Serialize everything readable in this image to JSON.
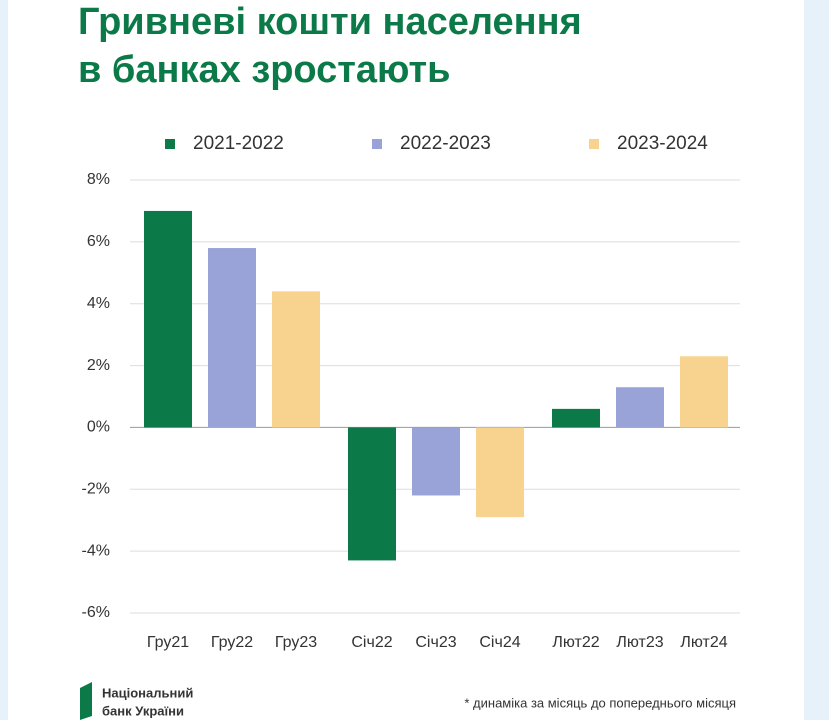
{
  "chart_data": {
    "type": "bar",
    "title": [
      "Гривневі кошти населення",
      "в банках зростають"
    ],
    "categories": [
      "Гру21",
      "Гру22",
      "Гру23",
      "Січ22",
      "Січ23",
      "Січ24",
      "Лют22",
      "Лют23",
      "Лют24"
    ],
    "series": [
      {
        "name": "2021-2022",
        "color": "#0b7a48",
        "values": [
          7.0,
          null,
          null,
          -4.3,
          null,
          null,
          0.6,
          null,
          null
        ]
      },
      {
        "name": "2022-2023",
        "color": "#99a3d7",
        "values": [
          null,
          5.8,
          null,
          null,
          -2.2,
          null,
          null,
          1.3,
          null
        ]
      },
      {
        "name": "2023-2024",
        "color": "#f7d38f",
        "values": [
          null,
          null,
          4.4,
          null,
          null,
          -2.9,
          null,
          null,
          2.3
        ]
      }
    ],
    "ylim": [
      -6,
      8
    ],
    "yticks": [
      {
        "value": -6,
        "label": "-6%"
      },
      {
        "value": -4,
        "label": "-4%"
      },
      {
        "value": -2,
        "label": "-2%"
      },
      {
        "value": 0,
        "label": "0%"
      },
      {
        "value": 2,
        "label": "2%"
      },
      {
        "value": 4,
        "label": "4%"
      },
      {
        "value": 6,
        "label": "6%"
      },
      {
        "value": 8,
        "label": "8%"
      }
    ],
    "grid": true,
    "logo": [
      "Національний",
      "банк України"
    ],
    "footnote": "* динаміка за місяць до попереднього місяця"
  }
}
